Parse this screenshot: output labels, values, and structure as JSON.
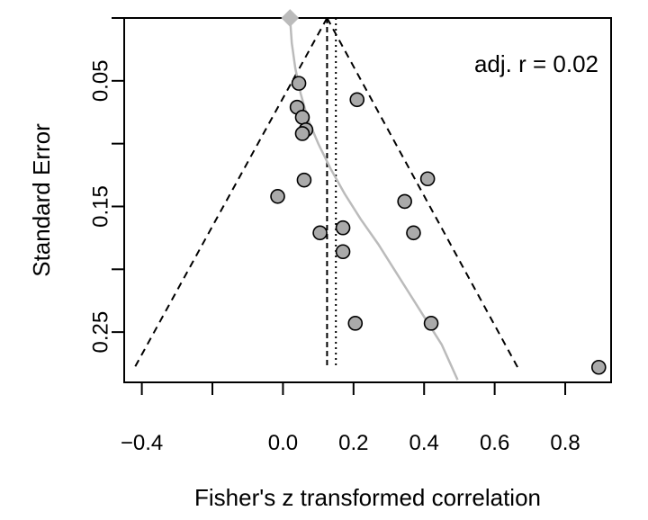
{
  "chart_data": {
    "type": "scatter",
    "title": "",
    "xlabel": "Fisher's z transformed correlation",
    "ylabel": "Standard Error",
    "xlim": [
      -0.45,
      0.93
    ],
    "ylim": [
      0.0,
      0.29
    ],
    "y_reversed": true,
    "x_ticks": [
      -0.4,
      0.0,
      0.2,
      0.4,
      0.6,
      0.8
    ],
    "x_tick_labels": [
      "−0.4",
      "0.0",
      "0.2",
      "0.4",
      "0.6",
      "0.8"
    ],
    "x_tick_marks": [
      -0.4,
      -0.2,
      0.0,
      0.2,
      0.4,
      0.6,
      0.8
    ],
    "y_ticks": [
      0.05,
      0.15,
      0.25
    ],
    "y_tick_labels": [
      "0.05",
      "0.15",
      "0.25"
    ],
    "y_tick_marks": [
      0.0,
      0.05,
      0.1,
      0.15,
      0.2,
      0.25
    ],
    "annotation": "adj. r =  0.02",
    "grid": false,
    "point_color": "#aaaaaa",
    "curve_color": "#bbbbbb",
    "adjusted_estimate_marker_color": "#bbbbbb",
    "points": [
      {
        "x": 0.045,
        "y": 0.052
      },
      {
        "x": 0.21,
        "y": 0.065
      },
      {
        "x": 0.04,
        "y": 0.071
      },
      {
        "x": 0.055,
        "y": 0.079
      },
      {
        "x": 0.065,
        "y": 0.089
      },
      {
        "x": 0.055,
        "y": 0.092
      },
      {
        "x": 0.06,
        "y": 0.129
      },
      {
        "x": 0.41,
        "y": 0.128
      },
      {
        "x": -0.015,
        "y": 0.142
      },
      {
        "x": 0.345,
        "y": 0.146
      },
      {
        "x": 0.17,
        "y": 0.167
      },
      {
        "x": 0.105,
        "y": 0.171
      },
      {
        "x": 0.37,
        "y": 0.171
      },
      {
        "x": 0.17,
        "y": 0.186
      },
      {
        "x": 0.205,
        "y": 0.243
      },
      {
        "x": 0.42,
        "y": 0.243
      },
      {
        "x": 0.895,
        "y": 0.278
      }
    ],
    "funnel": {
      "apex_x": 0.125,
      "apex_y": 0.0,
      "bottom_y": 0.278,
      "bottom_left_x": -0.42,
      "bottom_right_x": 0.665
    },
    "pooled_estimate_line_x": 0.125,
    "mean_line_x": 0.15,
    "adjusted_estimate": {
      "x": 0.02,
      "y": 0.0
    },
    "regression_curve": [
      {
        "x": 0.02,
        "y": 0.0
      },
      {
        "x": 0.025,
        "y": 0.02
      },
      {
        "x": 0.035,
        "y": 0.04
      },
      {
        "x": 0.05,
        "y": 0.06
      },
      {
        "x": 0.07,
        "y": 0.08
      },
      {
        "x": 0.1,
        "y": 0.1
      },
      {
        "x": 0.135,
        "y": 0.12
      },
      {
        "x": 0.175,
        "y": 0.14
      },
      {
        "x": 0.22,
        "y": 0.16
      },
      {
        "x": 0.27,
        "y": 0.18
      },
      {
        "x": 0.315,
        "y": 0.2
      },
      {
        "x": 0.36,
        "y": 0.22
      },
      {
        "x": 0.405,
        "y": 0.24
      },
      {
        "x": 0.45,
        "y": 0.26
      },
      {
        "x": 0.495,
        "y": 0.288
      }
    ]
  }
}
